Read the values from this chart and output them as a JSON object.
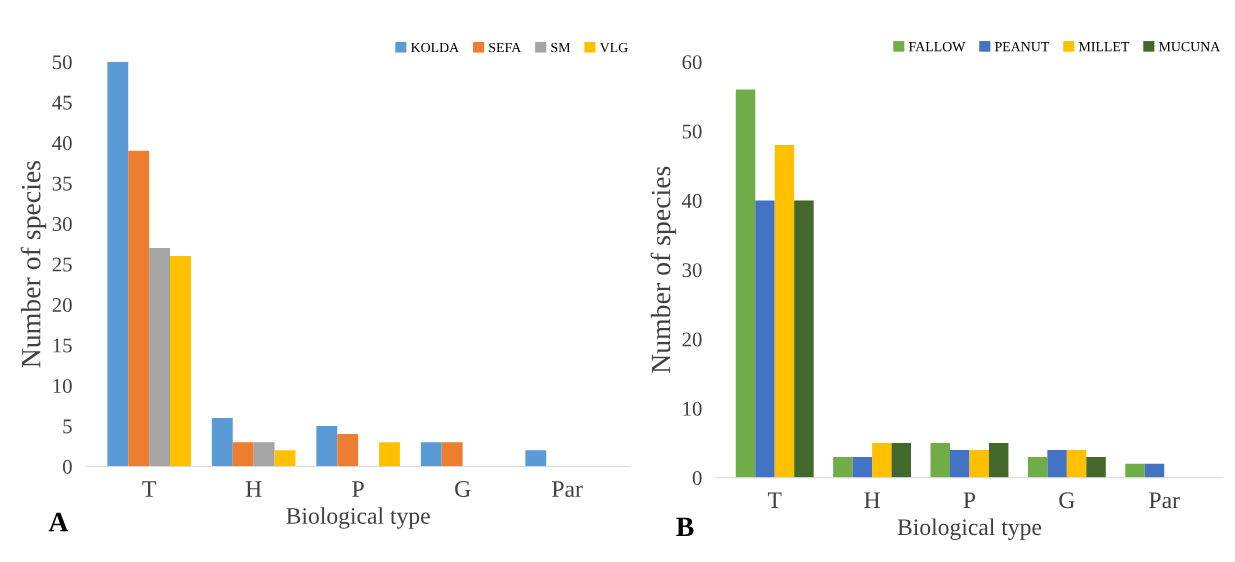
{
  "chart_data": [
    {
      "type": "bar",
      "xlabel": "Biological type",
      "ylabel": "Number of species",
      "categories": [
        "T",
        "H",
        "P",
        "G",
        "Par"
      ],
      "series": [
        {
          "name": "KOLDA",
          "color": "#5b9bd5",
          "values": [
            50,
            6,
            5,
            3,
            2
          ]
        },
        {
          "name": "SEFA",
          "color": "#ed7d31",
          "values": [
            39,
            3,
            4,
            3,
            0
          ]
        },
        {
          "name": "SM",
          "color": "#a5a5a5",
          "values": [
            27,
            3,
            0,
            0,
            0
          ]
        },
        {
          "name": "VLG",
          "color": "#ffc000",
          "values": [
            26,
            2,
            3,
            0,
            0
          ]
        }
      ],
      "ylim": [
        0,
        50
      ],
      "yticks": [
        0,
        5,
        10,
        15,
        20,
        25,
        30,
        35,
        40,
        45,
        50
      ],
      "grid": false,
      "legend": "top right",
      "annotations": [
        "A"
      ]
    },
    {
      "type": "bar",
      "xlabel": "Biological type",
      "ylabel": "Number of species",
      "categories": [
        "T",
        "H",
        "P",
        "G",
        "Par"
      ],
      "series": [
        {
          "name": "FALLOW",
          "color": "#70ad47",
          "values": [
            56,
            3,
            5,
            3,
            2
          ]
        },
        {
          "name": "PEANUT",
          "color": "#4472c4",
          "values": [
            40,
            3,
            4,
            4,
            2
          ]
        },
        {
          "name": "MILLET",
          "color": "#ffc000",
          "values": [
            48,
            5,
            4,
            4,
            0
          ]
        },
        {
          "name": "MUCUNA",
          "color": "#43682b",
          "values": [
            40,
            5,
            5,
            3,
            0
          ]
        }
      ],
      "ylim": [
        0,
        60
      ],
      "yticks": [
        0,
        10,
        20,
        30,
        40,
        50,
        60
      ],
      "grid": false,
      "legend": "top right",
      "annotations": [
        "B"
      ]
    }
  ]
}
